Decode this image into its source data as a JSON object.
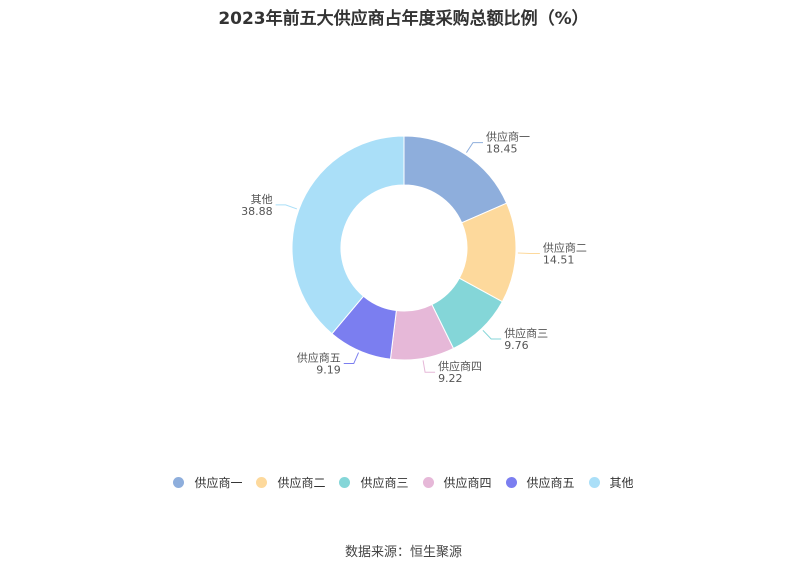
{
  "chart_data": {
    "type": "pie",
    "title": "2023年前五大供应商占年度采购总额比例（%）",
    "categories": [
      "供应商一",
      "供应商二",
      "供应商三",
      "供应商四",
      "供应商五",
      "其他"
    ],
    "values": [
      18.45,
      14.51,
      9.76,
      9.22,
      9.19,
      38.88
    ],
    "value_labels": [
      "18.45",
      "14.51",
      "9.76",
      "9.22",
      "9.19",
      "38.88"
    ],
    "colors": [
      "#8eaedc",
      "#fdd99c",
      "#84d6d8",
      "#e6b8d8",
      "#7b7ef0",
      "#aadff8"
    ],
    "donut": true,
    "legend_position": "bottom"
  },
  "source": "数据来源：恒生聚源"
}
